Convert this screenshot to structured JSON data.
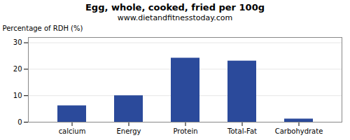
{
  "chart_data": {
    "type": "bar",
    "title": "Egg, whole, cooked, fried per 100g",
    "subtitle": "www.dietandfitnesstoday.com",
    "categories": [
      "calcium",
      "Energy",
      "Protein",
      "Total-Fat",
      "Carbohydrate"
    ],
    "values": [
      6.2,
      10.0,
      24.2,
      23.1,
      1.2
    ],
    "color": "#2b4a9b",
    "ylabel": "Percentage of RDH (%)",
    "ylim": [
      0,
      32
    ],
    "yticks": [
      0,
      10,
      20,
      30
    ],
    "grid": true
  }
}
